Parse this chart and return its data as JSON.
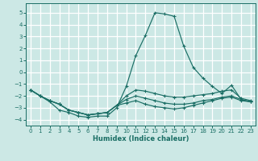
{
  "xlabel": "Humidex (Indice chaleur)",
  "xlim": [
    -0.5,
    23.5
  ],
  "ylim": [
    -4.5,
    5.8
  ],
  "xticks": [
    0,
    1,
    2,
    3,
    4,
    5,
    6,
    7,
    8,
    9,
    10,
    11,
    12,
    13,
    14,
    15,
    16,
    17,
    18,
    19,
    20,
    21,
    22,
    23
  ],
  "yticks": [
    -4,
    -3,
    -2,
    -1,
    0,
    1,
    2,
    3,
    4,
    5
  ],
  "background_color": "#cce8e5",
  "grid_color": "#b8dbd8",
  "line_color": "#1a6e65",
  "lines": [
    {
      "x": [
        0,
        1,
        2,
        3,
        4,
        5,
        6,
        7,
        8,
        9,
        10,
        11,
        12,
        13,
        14,
        15,
        16,
        17,
        18,
        19,
        20,
        21,
        22,
        23
      ],
      "y": [
        -1.5,
        -2.0,
        -2.5,
        -3.2,
        -3.4,
        -3.7,
        -3.8,
        -3.7,
        -3.7,
        -3.0,
        -1.2,
        1.4,
        3.1,
        5.0,
        4.9,
        4.7,
        2.2,
        0.4,
        -0.5,
        -1.2,
        -1.8,
        -1.1,
        -2.3,
        -2.5
      ]
    },
    {
      "x": [
        0,
        1,
        2,
        3,
        4,
        5,
        6,
        7,
        8,
        9,
        10,
        11,
        12,
        13,
        14,
        15,
        16,
        17,
        18,
        19,
        20,
        21,
        22,
        23
      ],
      "y": [
        -1.5,
        -2.0,
        -2.4,
        -2.7,
        -3.2,
        -3.4,
        -3.6,
        -3.5,
        -3.4,
        -2.8,
        -2.0,
        -1.5,
        -1.6,
        -1.8,
        -2.0,
        -2.1,
        -2.1,
        -2.0,
        -1.9,
        -1.8,
        -1.6,
        -1.5,
        -2.2,
        -2.4
      ]
    },
    {
      "x": [
        0,
        1,
        2,
        3,
        4,
        5,
        6,
        7,
        8,
        9,
        10,
        11,
        12,
        13,
        14,
        15,
        16,
        17,
        18,
        19,
        20,
        21,
        22,
        23
      ],
      "y": [
        -1.5,
        -2.0,
        -2.4,
        -2.7,
        -3.2,
        -3.4,
        -3.6,
        -3.5,
        -3.4,
        -2.8,
        -2.3,
        -2.0,
        -2.2,
        -2.4,
        -2.6,
        -2.7,
        -2.7,
        -2.6,
        -2.4,
        -2.3,
        -2.1,
        -2.0,
        -2.3,
        -2.5
      ]
    },
    {
      "x": [
        0,
        1,
        2,
        3,
        4,
        5,
        6,
        7,
        8,
        9,
        10,
        11,
        12,
        13,
        14,
        15,
        16,
        17,
        18,
        19,
        20,
        21,
        22,
        23
      ],
      "y": [
        -1.5,
        -2.0,
        -2.4,
        -2.7,
        -3.2,
        -3.4,
        -3.6,
        -3.5,
        -3.4,
        -2.8,
        -2.6,
        -2.4,
        -2.7,
        -2.9,
        -3.0,
        -3.1,
        -3.0,
        -2.8,
        -2.6,
        -2.4,
        -2.2,
        -2.1,
        -2.4,
        -2.5
      ]
    }
  ]
}
